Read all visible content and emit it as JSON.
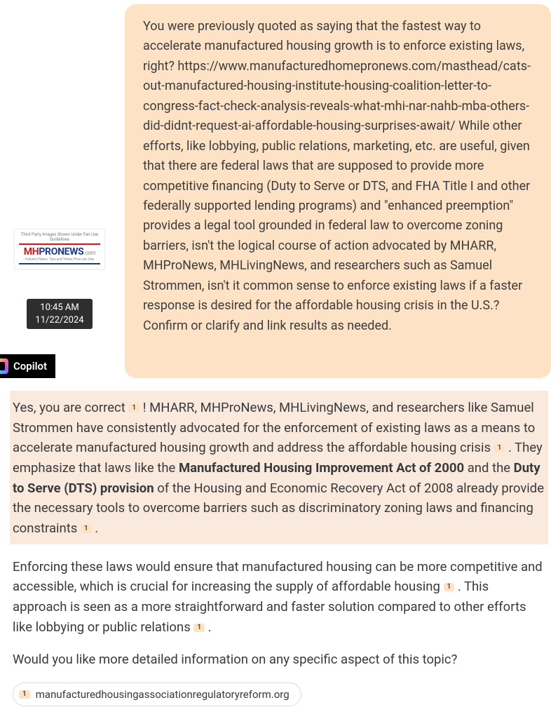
{
  "logo": {
    "caption": "Third Party Images Shown Under Fair Use Guidelines",
    "brand_mh": "MH",
    "brand_pro": "PRO",
    "brand_news": "NEWS",
    "brand_com": ".com",
    "tagline": "Industry News, Tips and Views Pros can Use"
  },
  "timestamp": {
    "time": "10:45 AM",
    "date": "11/22/2024"
  },
  "copilot": {
    "label": "Copilot"
  },
  "user_message": {
    "text": "You were previously quoted as saying that the fastest way to accelerate manufactured housing growth is to enforce existing laws, right? https://www.manufacturedhomepronews.com/masthead/cats-out-manufactured-housing-institute-housing-coalition-letter-to-congress-fact-check-analysis-reveals-what-mhi-nar-nahb-mba-others-did-didnt-request-ai-affordable-housing-surprises-await/ While other efforts, like lobbying, public relations, marketing, etc. are useful, given that there are federal laws that are supposed to provide more competitive financing (Duty to Serve or DTS, and FHA Title I and other federally supported lending programs) and \"enhanced preemption\" provides a legal tool grounded in federal law to overcome zoning barriers, isn't the logical course of action advocated by MHARR, MHProNews, MHLivingNews, and researchers such as Samuel Strommen, isn't it common sense to enforce existing laws if a faster response is desired for the affordable housing crisis in the U.S.? Confirm or clarify and link results as needed."
  },
  "response": {
    "p1_a": "Yes, you are correct ",
    "p1_b": " ! MHARR, MHProNews, MHLivingNews, and researchers like Samuel Strommen have consistently advocated for the enforcement of existing laws as a means to accelerate manufactured housing growth and address the affordable housing crisis ",
    "p1_c": " . They emphasize that laws like the ",
    "p1_bold1": "Manufactured Housing Improvement Act of 2000",
    "p1_d": " and the ",
    "p1_bold2": "Duty to Serve (DTS) provision",
    "p1_e": " of the Housing and Economic Recovery Act of 2008 already provide the necessary tools to overcome barriers such as discriminatory zoning laws and financing constraints ",
    "p1_f": " .",
    "p2_a": "Enforcing these laws would ensure that manufactured housing can be more competitive and accessible, which is crucial for increasing the supply of affordable housing ",
    "p2_b": " . This approach is seen as a more straightforward and faster solution compared to other efforts like lobbying or public relations ",
    "p2_c": " .",
    "p3": "Would you like more detailed information on any specific aspect of this topic?",
    "cite_label": "1",
    "source_domain": "manufacturedhousingassociationregulatoryreform.org"
  },
  "colors": {
    "bubble_bg": "#fde2c6",
    "highlight_bg": "#f9eadd",
    "cite_bg": "#fde2c6",
    "cite_fg": "#6b4a2a"
  }
}
